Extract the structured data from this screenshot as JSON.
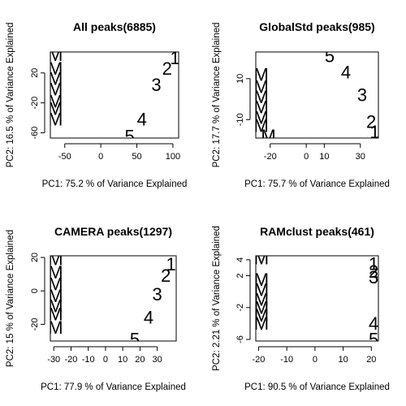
{
  "chart_data": [
    {
      "type": "scatter",
      "title": "All peaks(6885)",
      "xlabel": "PC1: 75.2 % of Variance Explained",
      "ylabel": "PC2: 16.5 % of Variance Explained",
      "xlim": [
        -70,
        108
      ],
      "ylim": [
        -67,
        48
      ],
      "xticks": [
        -50,
        0,
        50,
        100
      ],
      "yticks": [
        -60,
        -20,
        20
      ],
      "points": [
        {
          "label": "M",
          "x": -63,
          "y": 44
        },
        {
          "label": "M",
          "x": -63,
          "y": 26
        },
        {
          "label": "M",
          "x": -63,
          "y": 12
        },
        {
          "label": "M",
          "x": -63,
          "y": -2
        },
        {
          "label": "M",
          "x": -63,
          "y": -18
        },
        {
          "label": "M",
          "x": -63,
          "y": -28
        },
        {
          "label": "M",
          "x": -63,
          "y": -42
        },
        {
          "label": "1",
          "x": 103,
          "y": 40
        },
        {
          "label": "2",
          "x": 92,
          "y": 26
        },
        {
          "label": "3",
          "x": 77,
          "y": 4
        },
        {
          "label": "4",
          "x": 57,
          "y": -42
        },
        {
          "label": "5",
          "x": 40,
          "y": -65
        }
      ]
    },
    {
      "type": "scatter",
      "title": "GlobalStd peaks(985)",
      "xlabel": "PC1: 75.7 % of Variance Explained",
      "ylabel": "PC2: 17.7 % of Variance Explained",
      "xlim": [
        -28,
        40
      ],
      "ylim": [
        -19,
        23
      ],
      "xticks": [
        -20,
        0,
        10,
        30
      ],
      "yticks": [
        -10,
        10
      ],
      "points": [
        {
          "label": "5",
          "x": 13,
          "y": 21
        },
        {
          "label": "4",
          "x": 22,
          "y": 13
        },
        {
          "label": "3",
          "x": 31,
          "y": 2
        },
        {
          "label": "2",
          "x": 36,
          "y": -11
        },
        {
          "label": "1",
          "x": 38,
          "y": -16
        },
        {
          "label": "M",
          "x": -25,
          "y": 12
        },
        {
          "label": "M",
          "x": -25,
          "y": 6
        },
        {
          "label": "M",
          "x": -25,
          "y": 1
        },
        {
          "label": "M",
          "x": -25,
          "y": -4
        },
        {
          "label": "M",
          "x": -25,
          "y": -9
        },
        {
          "label": "M",
          "x": -25,
          "y": -13
        },
        {
          "label": "M",
          "x": -21,
          "y": -18
        }
      ]
    },
    {
      "type": "scatter",
      "title": "CAMERA peaks(1297)",
      "xlabel": "PC1: 77.9 % of Variance Explained",
      "ylabel": "PC2: 15 % of Variance Explained",
      "xlim": [
        -32,
        41
      ],
      "ylim": [
        -30,
        21
      ],
      "xticks": [
        -30,
        -20,
        -10,
        0,
        10,
        20,
        30
      ],
      "yticks": [
        -20,
        0,
        20
      ],
      "points": [
        {
          "label": "M",
          "x": -29,
          "y": 19
        },
        {
          "label": "M",
          "x": -29,
          "y": 11
        },
        {
          "label": "M",
          "x": -29,
          "y": 4
        },
        {
          "label": "M",
          "x": -29,
          "y": -3
        },
        {
          "label": "M",
          "x": -29,
          "y": -9
        },
        {
          "label": "M",
          "x": -29,
          "y": -14
        },
        {
          "label": "M",
          "x": -29,
          "y": -22
        },
        {
          "label": "1",
          "x": 38,
          "y": 16
        },
        {
          "label": "2",
          "x": 35,
          "y": 9
        },
        {
          "label": "3",
          "x": 30,
          "y": -2
        },
        {
          "label": "4",
          "x": 25,
          "y": -16
        },
        {
          "label": "5",
          "x": 17,
          "y": -29
        }
      ]
    },
    {
      "type": "scatter",
      "title": "RAMclust peaks(461)",
      "xlabel": "PC1: 90.5 % of Variance Explained",
      "ylabel": "PC2: 2.21 % of Variance Explained",
      "xlim": [
        -21,
        22.5
      ],
      "ylim": [
        -6.2,
        4.5
      ],
      "xticks": [
        -20,
        -10,
        0,
        10,
        20
      ],
      "yticks": [
        -6,
        -2,
        2,
        4
      ],
      "points": [
        {
          "label": "M",
          "x": -19,
          "y": 4.2
        },
        {
          "label": "M",
          "x": -19,
          "y": 1.5
        },
        {
          "label": "M",
          "x": -19,
          "y": 0.2
        },
        {
          "label": "M",
          "x": -19,
          "y": -1
        },
        {
          "label": "M",
          "x": -19,
          "y": -2
        },
        {
          "label": "M",
          "x": -19,
          "y": -3
        },
        {
          "label": "M",
          "x": -19,
          "y": -4
        },
        {
          "label": "1",
          "x": 20.8,
          "y": 3.5
        },
        {
          "label": "2",
          "x": 20.8,
          "y": 2.5
        },
        {
          "label": "3",
          "x": 20.8,
          "y": 1.8
        },
        {
          "label": "4",
          "x": 20.8,
          "y": -4
        },
        {
          "label": "5",
          "x": 20.8,
          "y": -6
        }
      ]
    }
  ]
}
